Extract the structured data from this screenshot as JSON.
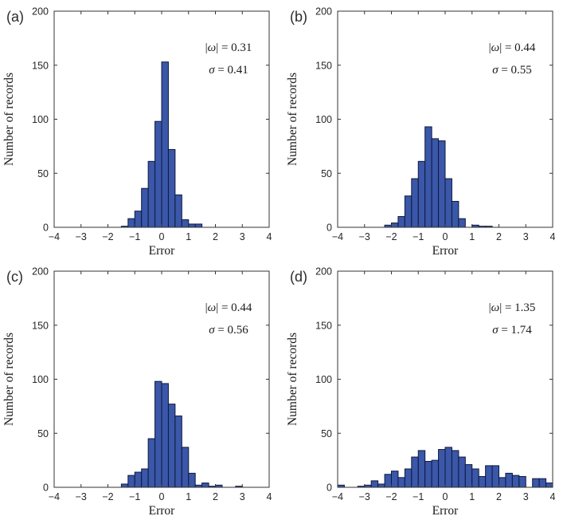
{
  "figure": {
    "xlabel": "Error",
    "ylabel": "Number of records",
    "xlim": [
      -4,
      4
    ],
    "ylim": [
      0,
      200
    ],
    "xticks": [
      "−4",
      "−3",
      "−2",
      "−1",
      "0",
      "1",
      "2",
      "3",
      "4"
    ],
    "xtick_values": [
      -4,
      -3,
      -2,
      -1,
      0,
      1,
      2,
      3,
      4
    ],
    "yticks": [
      "0",
      "50",
      "100",
      "150",
      "200"
    ],
    "ytick_values": [
      0,
      50,
      100,
      150,
      200
    ],
    "colors": {
      "bar_fill": "#3a57a8",
      "bar_edge": "#10183f",
      "axis": "#333333",
      "text": "#1a1a1a"
    }
  },
  "chart_data": [
    {
      "type": "bar",
      "panel_label": "(a)",
      "xlabel": "Error",
      "ylabel": "Number of records",
      "bin_width": 0.25,
      "bin_start": -1.5,
      "values": [
        1,
        8,
        15,
        36,
        61,
        98,
        153,
        72,
        30,
        7,
        3,
        3
      ],
      "annotations": {
        "omega_prefix": "|",
        "omega_sym": "ω",
        "omega_rest": "| = 0.31",
        "sigma_sym": "σ",
        "sigma_rest": " = 0.41"
      }
    },
    {
      "type": "bar",
      "panel_label": "(b)",
      "xlabel": "Error",
      "ylabel": "Number of records",
      "bin_width": 0.25,
      "bin_start": -2.25,
      "values": [
        2,
        4,
        10,
        29,
        45,
        61,
        93,
        82,
        80,
        45,
        24,
        8,
        0,
        2,
        1,
        1
      ],
      "annotations": {
        "omega_prefix": "|",
        "omega_sym": "ω",
        "omega_rest": "| = 0.44",
        "sigma_sym": "σ",
        "sigma_rest": " = 0.55"
      }
    },
    {
      "type": "bar",
      "panel_label": "(c)",
      "xlabel": "Error",
      "ylabel": "Number of records",
      "bin_width": 0.25,
      "bin_start": -1.5,
      "values": [
        3,
        11,
        14,
        17,
        45,
        98,
        96,
        77,
        66,
        37,
        13,
        2,
        4,
        1,
        2,
        0,
        0,
        1
      ],
      "annotations": {
        "omega_prefix": "|",
        "omega_sym": "ω",
        "omega_rest": "| = 0.44",
        "sigma_sym": "σ",
        "sigma_rest": " = 0.56"
      }
    },
    {
      "type": "bar",
      "panel_label": "(d)",
      "xlabel": "Error",
      "ylabel": "Number of records",
      "bin_width": 0.25,
      "bin_start": -4.0,
      "values": [
        2,
        0,
        0,
        1,
        2,
        6,
        3,
        12,
        15,
        9,
        17,
        28,
        34,
        24,
        25,
        35,
        37,
        34,
        28,
        21,
        17,
        10,
        20,
        20,
        9,
        13,
        11,
        10,
        0,
        8,
        8,
        4
      ],
      "annotations": {
        "omega_prefix": "|",
        "omega_sym": "ω",
        "omega_rest": "| = 1.35",
        "sigma_sym": "σ",
        "sigma_rest": " = 1.74"
      }
    }
  ]
}
